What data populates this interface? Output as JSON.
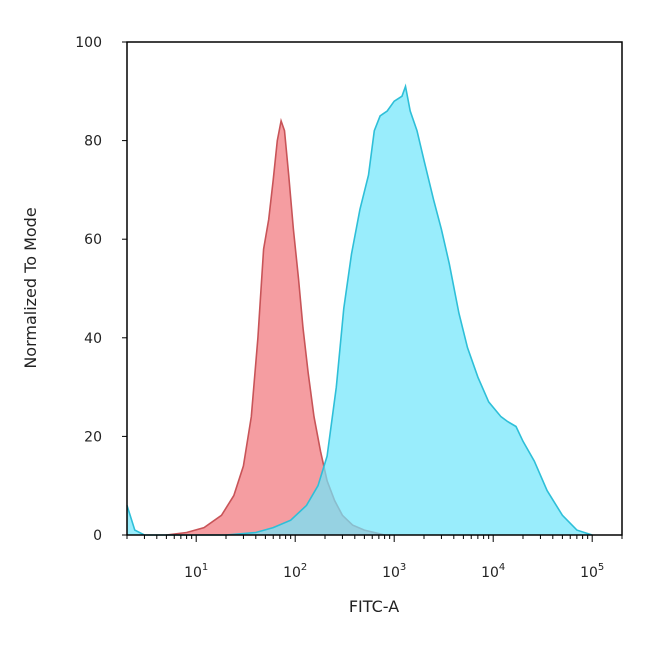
{
  "chart_data": {
    "type": "area",
    "title": "",
    "xlabel": "FITC-A",
    "ylabel": "Normalized To Mode",
    "xscale": "log",
    "xlim": [
      2,
      200000
    ],
    "ylim": [
      0,
      100
    ],
    "grid": false,
    "y_ticks": [
      0,
      20,
      40,
      60,
      80,
      100
    ],
    "y_tick_labels": [
      "0",
      "20",
      "40",
      "60",
      "80",
      "100"
    ],
    "x_ticks": [
      {
        "value": 10,
        "base": "10",
        "exp": "1"
      },
      {
        "value": 100,
        "base": "10",
        "exp": "2"
      },
      {
        "value": 1000,
        "base": "10",
        "exp": "3"
      },
      {
        "value": 10000,
        "base": "10",
        "exp": "4"
      },
      {
        "value": 100000,
        "base": "10",
        "exp": "5"
      }
    ],
    "series": [
      {
        "fill": "#f4989c",
        "stroke": "#c85458",
        "points": [
          [
            5,
            0
          ],
          [
            8,
            0.5
          ],
          [
            12,
            1.5
          ],
          [
            18,
            4
          ],
          [
            24,
            8
          ],
          [
            30,
            14
          ],
          [
            36,
            24
          ],
          [
            42,
            40
          ],
          [
            48,
            58
          ],
          [
            54,
            64
          ],
          [
            60,
            72
          ],
          [
            66,
            80
          ],
          [
            72,
            84
          ],
          [
            78,
            82
          ],
          [
            86,
            73
          ],
          [
            96,
            62
          ],
          [
            108,
            52
          ],
          [
            120,
            42
          ],
          [
            135,
            33
          ],
          [
            155,
            24
          ],
          [
            180,
            17
          ],
          [
            210,
            11
          ],
          [
            250,
            7
          ],
          [
            300,
            4
          ],
          [
            380,
            2
          ],
          [
            500,
            1
          ],
          [
            800,
            0
          ]
        ]
      },
      {
        "fill": "#72e6fb",
        "stroke": "#2ebfd8",
        "points": [
          [
            2,
            6
          ],
          [
            2.4,
            1
          ],
          [
            3,
            0
          ],
          [
            20,
            0
          ],
          [
            40,
            0.5
          ],
          [
            60,
            1.5
          ],
          [
            90,
            3
          ],
          [
            130,
            6
          ],
          [
            170,
            10
          ],
          [
            210,
            16
          ],
          [
            260,
            30
          ],
          [
            310,
            46
          ],
          [
            370,
            57
          ],
          [
            450,
            66
          ],
          [
            550,
            73
          ],
          [
            630,
            82
          ],
          [
            720,
            85
          ],
          [
            850,
            86
          ],
          [
            1000,
            88
          ],
          [
            1200,
            89
          ],
          [
            1300,
            91
          ],
          [
            1450,
            86
          ],
          [
            1700,
            82
          ],
          [
            2000,
            76
          ],
          [
            2500,
            68
          ],
          [
            3000,
            62
          ],
          [
            3600,
            55
          ],
          [
            4500,
            45
          ],
          [
            5500,
            38
          ],
          [
            7000,
            32
          ],
          [
            9000,
            27
          ],
          [
            12000,
            24
          ],
          [
            14000,
            23
          ],
          [
            17000,
            22
          ],
          [
            20000,
            19
          ],
          [
            26000,
            15
          ],
          [
            35000,
            9
          ],
          [
            50000,
            4
          ],
          [
            70000,
            1
          ],
          [
            100000,
            0
          ]
        ]
      }
    ]
  }
}
